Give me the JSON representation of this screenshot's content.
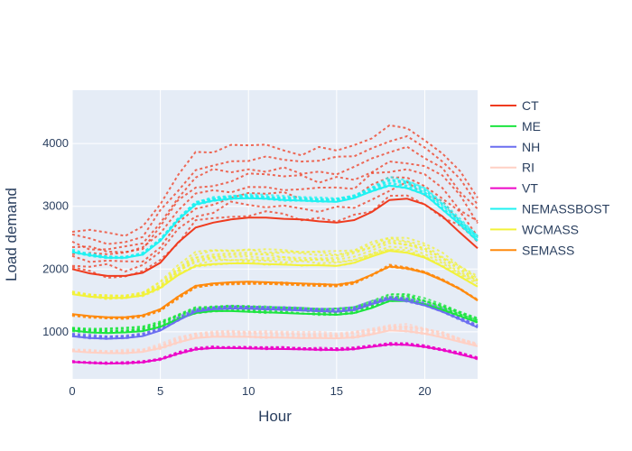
{
  "chart_data": {
    "type": "line",
    "title": "",
    "xlabel": "Hour",
    "ylabel": "Load demand",
    "xlim": [
      0,
      23
    ],
    "ylim": [
      250,
      4850
    ],
    "x_ticks": [
      0,
      5,
      10,
      15,
      20
    ],
    "y_ticks": [
      1000,
      2000,
      3000,
      4000
    ],
    "grid": true,
    "legend_position": "right",
    "x": [
      0,
      1,
      2,
      3,
      4,
      5,
      6,
      7,
      8,
      9,
      10,
      11,
      12,
      13,
      14,
      15,
      16,
      17,
      18,
      19,
      20,
      21,
      22,
      23
    ],
    "series": [
      {
        "name": "CT",
        "color": "#ef3b1f",
        "values": [
          2000,
          1930,
          1890,
          1890,
          1940,
          2100,
          2420,
          2660,
          2740,
          2790,
          2820,
          2820,
          2800,
          2790,
          2760,
          2740,
          2780,
          2910,
          3100,
          3120,
          3030,
          2840,
          2580,
          2330
        ],
        "dotted_band": [
          2600,
          2550,
          2520,
          2540,
          2680,
          3000,
          3450,
          3800,
          3850,
          3900,
          3950,
          3930,
          3900,
          3880,
          3870,
          3880,
          3950,
          4100,
          4250,
          4200,
          4050,
          3850,
          3500,
          3100
        ]
      },
      {
        "name": "ME",
        "color": "#1ce43f",
        "values": [
          1020,
          990,
          980,
          990,
          1010,
          1080,
          1200,
          1300,
          1330,
          1330,
          1320,
          1310,
          1300,
          1290,
          1280,
          1270,
          1300,
          1380,
          1490,
          1490,
          1430,
          1350,
          1250,
          1150
        ],
        "dotted_band": [
          1080,
          1060,
          1050,
          1055,
          1080,
          1150,
          1280,
          1390,
          1420,
          1430,
          1420,
          1410,
          1400,
          1390,
          1380,
          1370,
          1400,
          1480,
          1600,
          1600,
          1520,
          1430,
          1320,
          1210
        ]
      },
      {
        "name": "NH",
        "color": "#6b6ef0",
        "values": [
          930,
          900,
          890,
          900,
          930,
          1020,
          1180,
          1320,
          1360,
          1370,
          1370,
          1360,
          1350,
          1340,
          1330,
          1320,
          1350,
          1440,
          1520,
          1490,
          1420,
          1320,
          1200,
          1070
        ],
        "dotted_band": [
          960,
          940,
          930,
          940,
          970,
          1060,
          1220,
          1360,
          1400,
          1410,
          1410,
          1400,
          1390,
          1380,
          1370,
          1360,
          1390,
          1480,
          1560,
          1530,
          1460,
          1360,
          1230,
          1100
        ]
      },
      {
        "name": "RI",
        "color": "#ffd0c4",
        "values": [
          690,
          670,
          660,
          660,
          680,
          740,
          830,
          900,
          920,
          920,
          920,
          910,
          905,
          900,
          900,
          895,
          910,
          960,
          1020,
          1010,
          970,
          910,
          840,
          770
        ],
        "dotted_band": [
          720,
          705,
          695,
          700,
          720,
          790,
          900,
          980,
          1000,
          1010,
          1010,
          1000,
          995,
          990,
          985,
          980,
          1000,
          1060,
          1120,
          1110,
          1060,
          990,
          900,
          820
        ]
      },
      {
        "name": "VT",
        "color": "#ec07c8",
        "values": [
          520,
          505,
          495,
          500,
          515,
          560,
          650,
          720,
          740,
          740,
          735,
          730,
          725,
          720,
          715,
          710,
          725,
          760,
          800,
          790,
          760,
          710,
          640,
          570
        ],
        "dotted_band": [
          530,
          515,
          505,
          510,
          525,
          570,
          670,
          740,
          760,
          760,
          755,
          750,
          745,
          740,
          735,
          730,
          745,
          780,
          820,
          810,
          780,
          730,
          660,
          590
        ]
      },
      {
        "name": "NEMASSBOST",
        "color": "#1ff2f2",
        "values": [
          2270,
          2220,
          2180,
          2180,
          2230,
          2450,
          2780,
          3030,
          3090,
          3120,
          3130,
          3120,
          3100,
          3090,
          3080,
          3070,
          3130,
          3240,
          3330,
          3290,
          3190,
          2950,
          2710,
          2450
        ],
        "dotted_band": [
          2300,
          2240,
          2200,
          2200,
          2260,
          2480,
          2820,
          3080,
          3140,
          3170,
          3180,
          3170,
          3150,
          3140,
          3130,
          3120,
          3180,
          3300,
          3460,
          3420,
          3300,
          3060,
          2800,
          2530
        ]
      },
      {
        "name": "WCMASS",
        "color": "#f2f23a",
        "values": [
          1600,
          1560,
          1540,
          1540,
          1580,
          1700,
          1900,
          2050,
          2080,
          2090,
          2090,
          2080,
          2070,
          2060,
          2060,
          2050,
          2100,
          2200,
          2290,
          2260,
          2180,
          2040,
          1880,
          1720
        ],
        "dotted_band": [
          1650,
          1610,
          1590,
          1590,
          1640,
          1780,
          2050,
          2250,
          2300,
          2320,
          2320,
          2310,
          2300,
          2290,
          2280,
          2270,
          2320,
          2420,
          2520,
          2490,
          2400,
          2240,
          2060,
          1880
        ]
      },
      {
        "name": "SEMASS",
        "color": "#ff8a0d",
        "values": [
          1280,
          1250,
          1230,
          1230,
          1260,
          1360,
          1560,
          1730,
          1770,
          1790,
          1800,
          1790,
          1780,
          1770,
          1760,
          1750,
          1790,
          1910,
          2040,
          2010,
          1940,
          1820,
          1680,
          1500
        ],
        "dotted_band": [
          1260,
          1230,
          1210,
          1210,
          1240,
          1330,
          1530,
          1700,
          1740,
          1760,
          1770,
          1760,
          1750,
          1740,
          1730,
          1720,
          1770,
          1900,
          2060,
          2020,
          1950,
          1830,
          1690,
          1510
        ]
      }
    ]
  }
}
